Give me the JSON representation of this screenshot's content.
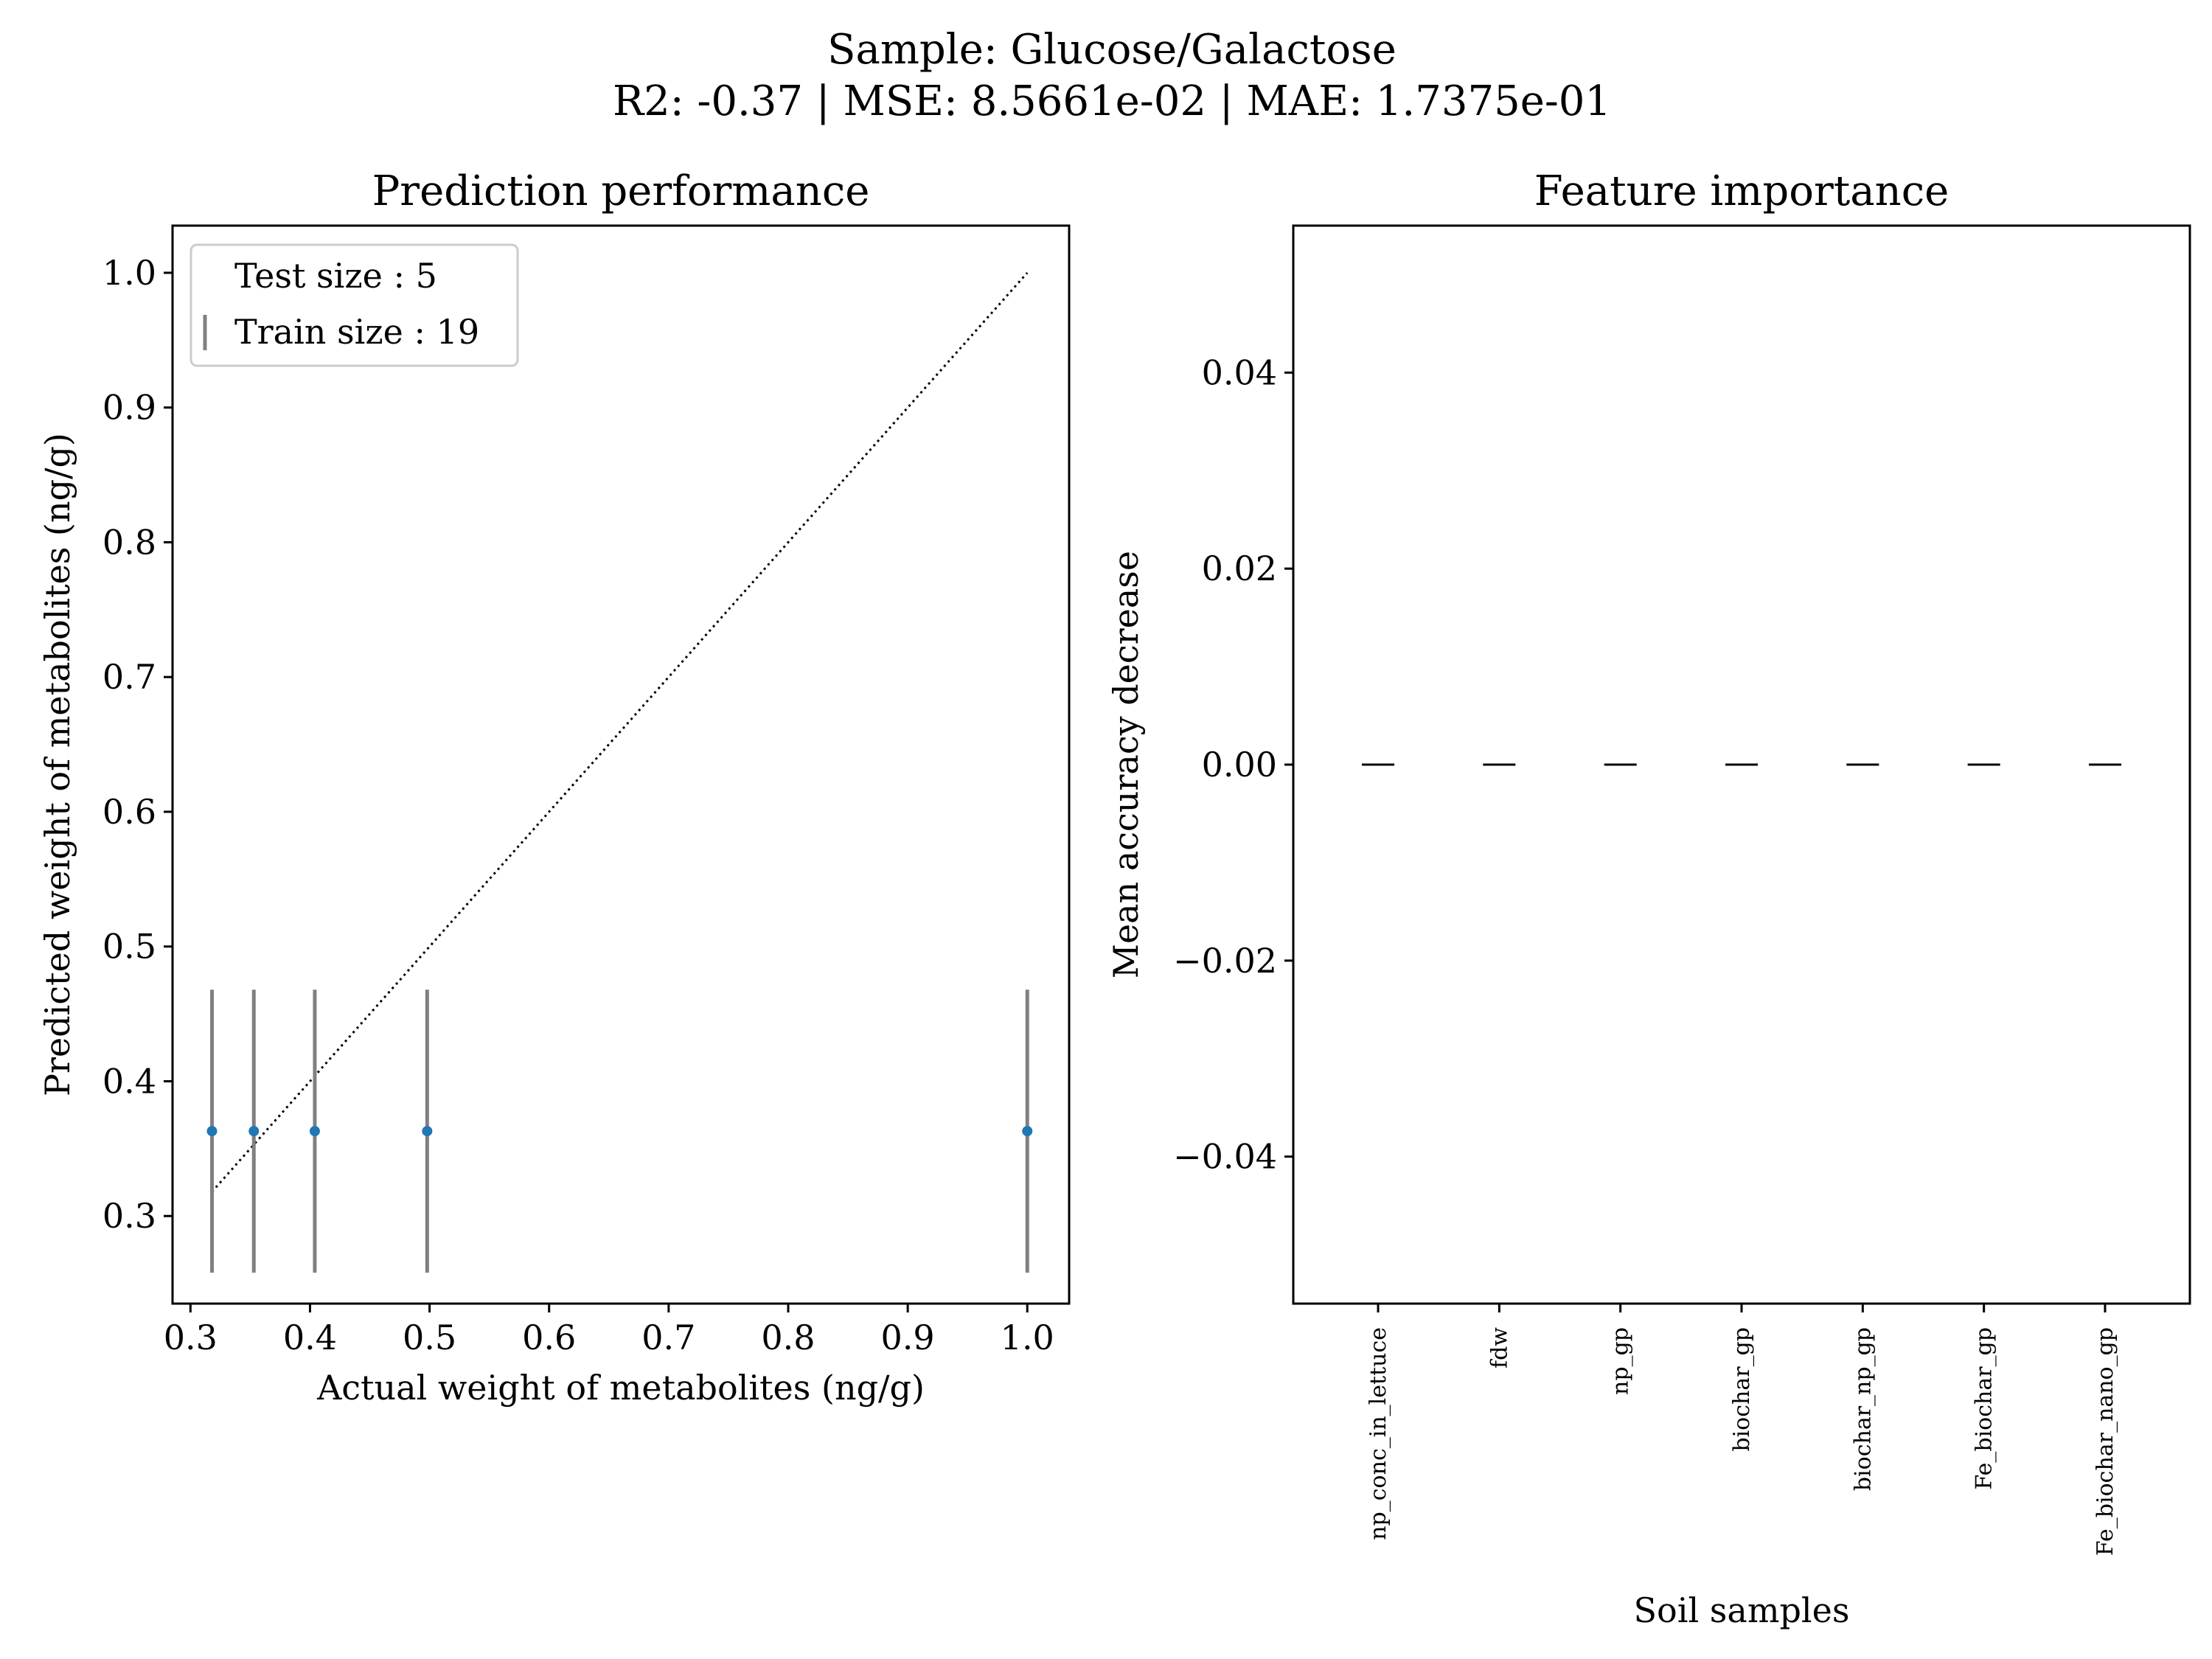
{
  "figure": {
    "title_line1": "Sample: Glucose/Galactose",
    "title_line2": "R2: -0.37 | MSE: 8.5661e-02 | MAE: 1.7375e-01"
  },
  "colors": {
    "point": "#1f77b4",
    "errorbar": "#808080",
    "identity_line": "#000000",
    "importance_marker": "#000000",
    "axes": "#000000"
  },
  "chart_data": [
    {
      "type": "scatter",
      "title": "Prediction performance",
      "xlabel": "Actual weight of metabolites (ng/g)",
      "ylabel": "Predicted weight of metabolites (ng/g)",
      "xlim": [
        0.285,
        1.035
      ],
      "ylim": [
        0.235,
        1.035
      ],
      "xticks": [
        "0.3",
        "0.4",
        "0.5",
        "0.6",
        "0.7",
        "0.8",
        "0.9",
        "1.0"
      ],
      "yticks": [
        "0.3",
        "0.4",
        "0.5",
        "0.6",
        "0.7",
        "0.8",
        "0.9",
        "1.0"
      ],
      "legend": {
        "position": "upper left",
        "entries": [
          "Test size : 5",
          "Train size : 19"
        ]
      },
      "identity_line": {
        "from": [
          0.318,
          0.318
        ],
        "to": [
          1.0,
          1.0
        ],
        "style": "dotted"
      },
      "points": [
        {
          "x": 0.318,
          "y": 0.363,
          "err_low": 0.258,
          "err_high": 0.468
        },
        {
          "x": 0.353,
          "y": 0.363,
          "err_low": 0.258,
          "err_high": 0.468
        },
        {
          "x": 0.404,
          "y": 0.363,
          "err_low": 0.258,
          "err_high": 0.468
        },
        {
          "x": 0.498,
          "y": 0.363,
          "err_low": 0.258,
          "err_high": 0.468
        },
        {
          "x": 1.0,
          "y": 0.363,
          "err_low": 0.258,
          "err_high": 0.468
        }
      ],
      "grid": false
    },
    {
      "type": "bar",
      "title": "Feature importance",
      "xlabel": "Soil samples",
      "ylabel": "Mean accuracy decrease",
      "ylim": [
        -0.055,
        0.055
      ],
      "yticks": [
        "0.04",
        "0.02",
        "0.00",
        "−0.02",
        "−0.04"
      ],
      "ytick_values": [
        0.04,
        0.02,
        0.0,
        -0.02,
        -0.04
      ],
      "categories": [
        "np_conc_in_lettuce",
        "fdw",
        "np_gp",
        "biochar_gp",
        "biochar_np_gp",
        "Fe_biochar_gp",
        "Fe_biochar_nano_gp"
      ],
      "values": [
        0,
        0,
        0,
        0,
        0,
        0,
        0
      ],
      "grid": false
    }
  ]
}
